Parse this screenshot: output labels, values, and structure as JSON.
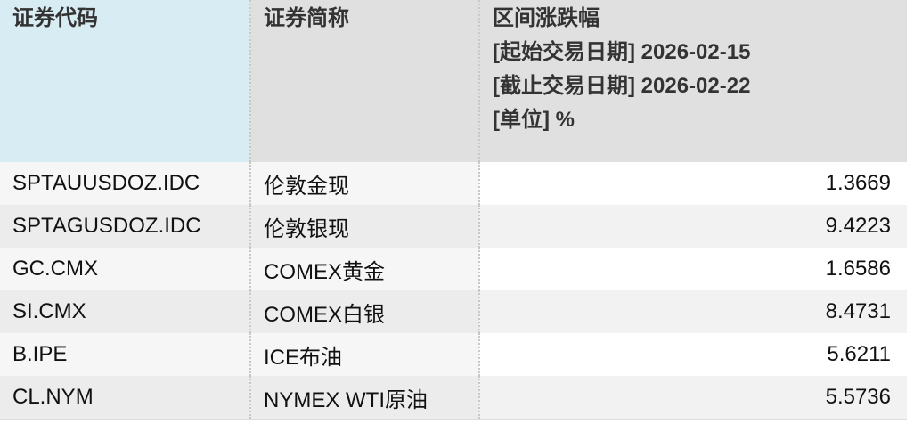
{
  "header": {
    "code": "证券代码",
    "name": "证券简称",
    "change": "区间涨跌幅",
    "start": "[起始交易日期] 2026-02-15",
    "end": "[截止交易日期] 2026-02-22",
    "unit": "[单位] %"
  },
  "rows": [
    {
      "code": "SPTAUUSDOZ.IDC",
      "name": "伦敦金现",
      "value": "1.3669"
    },
    {
      "code": "SPTAGUSDOZ.IDC",
      "name": "伦敦银现",
      "value": "9.4223"
    },
    {
      "code": "GC.CMX",
      "name": "COMEX黄金",
      "value": "1.6586"
    },
    {
      "code": "SI.CMX",
      "name": "COMEX白银",
      "value": "8.4731"
    },
    {
      "code": "B.IPE",
      "name": "ICE布油",
      "value": "5.6211"
    },
    {
      "code": "CL.NYM",
      "name": "NYMEX WTI原油",
      "value": "5.5736"
    }
  ]
}
